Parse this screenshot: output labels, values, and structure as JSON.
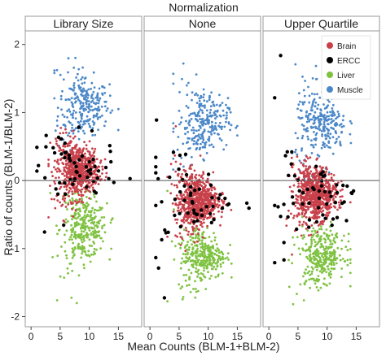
{
  "chart_data": {
    "type": "scatter",
    "title": "Normalization",
    "xlabel": "Mean Counts (BLM-1+BLM-2)",
    "ylabel": "Ratio of counts (BLM-1/BLM-2)",
    "xlim": [
      -1,
      19
    ],
    "ylim": [
      -2.15,
      2.2
    ],
    "x_ticks": [
      0,
      5,
      10,
      15
    ],
    "x_tick_labels": [
      "0",
      "5",
      "10",
      "15"
    ],
    "y_ticks": [
      -2,
      -1,
      0,
      1,
      2
    ],
    "y_tick_labels": [
      "-2",
      "-1",
      "0",
      "1",
      "2"
    ],
    "reference_line_y": 0,
    "grid": false,
    "legend": {
      "placement": "top-right of third panel",
      "entries": [
        {
          "name": "Brain",
          "color": "#c8404a"
        },
        {
          "name": "ERCC",
          "color": "#000000"
        },
        {
          "name": "Liver",
          "color": "#7fc241"
        },
        {
          "name": "Muscle",
          "color": "#4c88c8"
        }
      ]
    },
    "panels": [
      {
        "facet_label": "Library Size",
        "series": [
          {
            "name": "Brain",
            "color": "#c8404a",
            "center": [
              8,
              0.15
            ],
            "spread": [
              1.8,
              0.22
            ],
            "points": 700,
            "range_x": [
              3,
              14
            ]
          },
          {
            "name": "Muscle",
            "color": "#4c88c8",
            "center": [
              9,
              1.1
            ],
            "spread": [
              2.2,
              0.3
            ],
            "points": 260,
            "range_x": [
              4,
              15
            ]
          },
          {
            "name": "Liver",
            "color": "#7fc241",
            "center": [
              9,
              -0.7
            ],
            "spread": [
              2.0,
              0.3
            ],
            "points": 320,
            "range_x": [
              3,
              14
            ]
          },
          {
            "name": "ERCC",
            "color": "#000000",
            "center": [
              7,
              0.1
            ],
            "spread": [
              4,
              0.3
            ],
            "points": 60,
            "range_x": [
              1,
              17
            ]
          }
        ]
      },
      {
        "facet_label": "None",
        "series": [
          {
            "name": "Brain",
            "color": "#c8404a",
            "center": [
              8,
              -0.3
            ],
            "spread": [
              1.8,
              0.22
            ],
            "points": 700,
            "range_x": [
              3,
              14
            ]
          },
          {
            "name": "Muscle",
            "color": "#4c88c8",
            "center": [
              9,
              0.85
            ],
            "spread": [
              2.2,
              0.3
            ],
            "points": 260,
            "range_x": [
              4,
              15
            ]
          },
          {
            "name": "Liver",
            "color": "#7fc241",
            "center": [
              9,
              -1.1
            ],
            "spread": [
              2.0,
              0.25
            ],
            "points": 320,
            "range_x": [
              3,
              14
            ]
          },
          {
            "name": "ERCC",
            "color": "#000000",
            "center": [
              7,
              -0.3
            ],
            "spread": [
              4,
              0.3
            ],
            "points": 60,
            "range_x": [
              1,
              17
            ]
          }
        ]
      },
      {
        "facet_label": "Upper Quartile",
        "series": [
          {
            "name": "Brain",
            "color": "#c8404a",
            "center": [
              8,
              -0.2
            ],
            "spread": [
              1.8,
              0.22
            ],
            "points": 700,
            "range_x": [
              3,
              14
            ]
          },
          {
            "name": "Muscle",
            "color": "#4c88c8",
            "center": [
              9,
              0.8
            ],
            "spread": [
              2.2,
              0.3
            ],
            "points": 260,
            "range_x": [
              4,
              15
            ]
          },
          {
            "name": "Liver",
            "color": "#7fc241",
            "center": [
              9,
              -1.1
            ],
            "spread": [
              2.0,
              0.25
            ],
            "points": 320,
            "range_x": [
              3,
              14
            ]
          },
          {
            "name": "ERCC",
            "color": "#000000",
            "center": [
              7,
              -0.2
            ],
            "spread": [
              4,
              0.3
            ],
            "points": 60,
            "range_x": [
              1,
              17
            ]
          }
        ]
      }
    ]
  }
}
